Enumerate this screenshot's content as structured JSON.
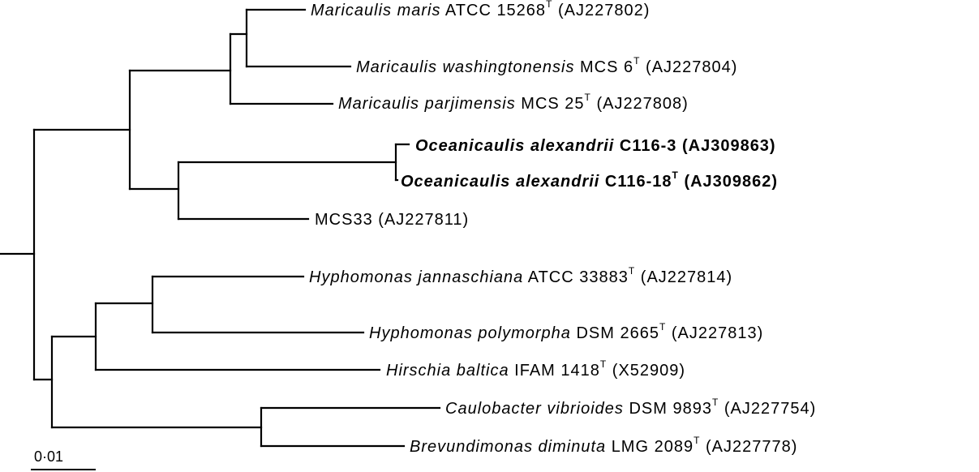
{
  "taxa": [
    {
      "id": "mmaris",
      "species": "Maricaulis maris",
      "strain": "ATCC 15268",
      "type_strain": "T",
      "accession": "(AJ227802)",
      "bold": false
    },
    {
      "id": "mwash",
      "species": "Maricaulis washingtonensis",
      "strain": "MCS 6",
      "type_strain": "T",
      "accession": "(AJ227804)",
      "bold": false
    },
    {
      "id": "mparj",
      "species": "Maricaulis parjimensis",
      "strain": "MCS 25",
      "type_strain": "T",
      "accession": " (AJ227808)",
      "bold": false
    },
    {
      "id": "oalex3",
      "species": "Oceanicaulis alexandrii",
      "strain": "C116-3",
      "type_strain": "",
      "accession": "(AJ309863)",
      "bold": true
    },
    {
      "id": "oalex18",
      "species": "Oceanicaulis alexandrii",
      "strain": "C116-18",
      "type_strain": "T",
      "accession": "(AJ309862)",
      "bold": true
    },
    {
      "id": "mcs33",
      "species": "",
      "strain": "MCS33",
      "type_strain": "",
      "accession": "(AJ227811)",
      "bold": false
    },
    {
      "id": "hjann",
      "species": "Hyphomonas jannaschiana",
      "strain": "ATCC 33883",
      "type_strain": "T",
      "accession": "(AJ227814)",
      "bold": false
    },
    {
      "id": "hpoly",
      "species": "Hyphomonas polymorpha",
      "strain": "DSM 2665",
      "type_strain": "T",
      "accession": "(AJ227813)",
      "bold": false
    },
    {
      "id": "hbalt",
      "species": "Hirschia baltica",
      "strain": "IFAM 1418",
      "type_strain": "T",
      "accession": "(X52909)",
      "bold": false
    },
    {
      "id": "cvib",
      "species": "Caulobacter vibrioides",
      "strain": "DSM 9893",
      "type_strain": "T",
      "accession": "(AJ227754)",
      "bold": false
    },
    {
      "id": "bdim",
      "species": "Brevundimonas diminuta",
      "strain": "LMG 2089",
      "type_strain": "T",
      "accession": "(AJ227778)",
      "bold": false
    }
  ],
  "scale_bar": {
    "label": "0·01"
  }
}
